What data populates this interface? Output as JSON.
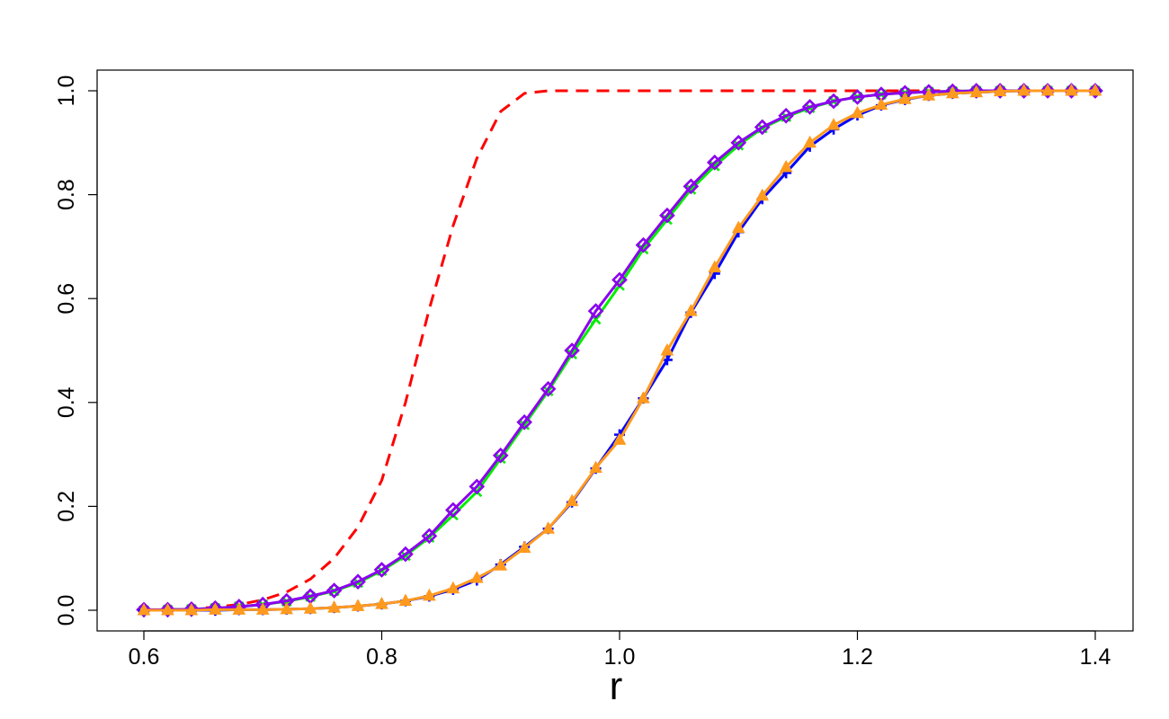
{
  "chart_data": {
    "type": "line",
    "title": "",
    "xlabel": "r",
    "ylabel": "",
    "xlim": [
      0.6,
      1.4
    ],
    "ylim": [
      0.0,
      1.0
    ],
    "x_ticks": [
      "0.6",
      "0.8",
      "1.0",
      "1.2",
      "1.4"
    ],
    "y_ticks": [
      "0.0",
      "0.2",
      "0.4",
      "0.6",
      "0.8",
      "1.0"
    ],
    "grid": false,
    "legend": "none",
    "series": [
      {
        "color": "#ff0000",
        "line_style": "dashed",
        "marker": "none",
        "x": [
          0.6,
          0.62,
          0.64,
          0.66,
          0.68,
          0.7,
          0.72,
          0.74,
          0.76,
          0.78,
          0.8,
          0.82,
          0.84,
          0.86,
          0.88,
          0.9,
          0.92,
          0.94,
          0.96,
          1.0,
          1.1,
          1.2,
          1.3,
          1.4
        ],
        "y": [
          0.0,
          0.001,
          0.003,
          0.006,
          0.011,
          0.02,
          0.035,
          0.06,
          0.1,
          0.16,
          0.25,
          0.4,
          0.58,
          0.74,
          0.87,
          0.96,
          0.995,
          1.0,
          1.0,
          1.0,
          1.0,
          1.0,
          1.0,
          1.0
        ]
      },
      {
        "color": "#00ee00",
        "line_style": "solid",
        "marker": "x",
        "x": [
          0.6,
          0.62,
          0.64,
          0.66,
          0.68,
          0.7,
          0.72,
          0.74,
          0.76,
          0.78,
          0.8,
          0.82,
          0.84,
          0.86,
          0.88,
          0.9,
          0.92,
          0.94,
          0.96,
          0.98,
          1.0,
          1.02,
          1.04,
          1.06,
          1.08,
          1.1,
          1.12,
          1.14,
          1.16,
          1.18,
          1.2,
          1.22,
          1.24,
          1.26,
          1.28,
          1.3,
          1.32,
          1.34,
          1.36,
          1.38,
          1.4
        ],
        "y": [
          0.0,
          0.001,
          0.002,
          0.004,
          0.007,
          0.011,
          0.017,
          0.026,
          0.037,
          0.053,
          0.076,
          0.105,
          0.14,
          0.183,
          0.228,
          0.292,
          0.357,
          0.422,
          0.493,
          0.56,
          0.625,
          0.695,
          0.752,
          0.81,
          0.855,
          0.895,
          0.928,
          0.95,
          0.967,
          0.98,
          0.988,
          0.993,
          0.996,
          0.998,
          0.999,
          1.0,
          1.0,
          1.0,
          1.0,
          1.0,
          1.0
        ]
      },
      {
        "color": "#8b00ee",
        "line_style": "solid",
        "marker": "diamond",
        "x": [
          0.6,
          0.62,
          0.64,
          0.66,
          0.68,
          0.7,
          0.72,
          0.74,
          0.76,
          0.78,
          0.8,
          0.82,
          0.84,
          0.86,
          0.88,
          0.9,
          0.92,
          0.94,
          0.96,
          0.98,
          1.0,
          1.02,
          1.04,
          1.06,
          1.08,
          1.1,
          1.12,
          1.14,
          1.16,
          1.18,
          1.2,
          1.22,
          1.24,
          1.26,
          1.28,
          1.3,
          1.32,
          1.34,
          1.36,
          1.38,
          1.4
        ],
        "y": [
          0.001,
          0.001,
          0.002,
          0.004,
          0.007,
          0.011,
          0.018,
          0.027,
          0.038,
          0.055,
          0.078,
          0.108,
          0.143,
          0.193,
          0.238,
          0.298,
          0.362,
          0.426,
          0.5,
          0.576,
          0.636,
          0.703,
          0.76,
          0.816,
          0.862,
          0.9,
          0.93,
          0.952,
          0.969,
          0.98,
          0.988,
          0.993,
          0.996,
          0.998,
          0.999,
          1.0,
          1.0,
          1.0,
          1.0,
          1.0,
          1.0
        ]
      },
      {
        "color": "#0000ff",
        "line_style": "solid",
        "marker": "plus",
        "x": [
          0.6,
          0.62,
          0.64,
          0.66,
          0.68,
          0.7,
          0.72,
          0.74,
          0.76,
          0.78,
          0.8,
          0.82,
          0.84,
          0.86,
          0.88,
          0.9,
          0.92,
          0.94,
          0.96,
          0.98,
          1.0,
          1.02,
          1.04,
          1.06,
          1.08,
          1.1,
          1.12,
          1.14,
          1.16,
          1.18,
          1.2,
          1.22,
          1.24,
          1.26,
          1.28,
          1.3,
          1.32,
          1.34,
          1.36,
          1.38,
          1.4
        ],
        "y": [
          0.0,
          0.0,
          0.0,
          0.0,
          0.001,
          0.001,
          0.002,
          0.003,
          0.005,
          0.008,
          0.012,
          0.018,
          0.027,
          0.04,
          0.058,
          0.088,
          0.122,
          0.157,
          0.208,
          0.273,
          0.338,
          0.408,
          0.482,
          0.573,
          0.648,
          0.728,
          0.792,
          0.842,
          0.893,
          0.926,
          0.953,
          0.972,
          0.983,
          0.991,
          0.995,
          0.997,
          0.999,
          1.0,
          1.0,
          1.0,
          1.0
        ]
      },
      {
        "color": "#ff9a1e",
        "line_style": "solid",
        "marker": "triangle",
        "x": [
          0.6,
          0.62,
          0.64,
          0.66,
          0.68,
          0.7,
          0.72,
          0.74,
          0.76,
          0.78,
          0.8,
          0.82,
          0.84,
          0.86,
          0.88,
          0.9,
          0.92,
          0.94,
          0.96,
          0.98,
          1.0,
          1.02,
          1.04,
          1.06,
          1.08,
          1.1,
          1.12,
          1.14,
          1.16,
          1.18,
          1.2,
          1.22,
          1.24,
          1.26,
          1.28,
          1.3,
          1.32,
          1.34,
          1.36,
          1.38,
          1.4
        ],
        "y": [
          0.0,
          0.0,
          0.0,
          0.001,
          0.001,
          0.001,
          0.002,
          0.003,
          0.005,
          0.008,
          0.012,
          0.018,
          0.028,
          0.042,
          0.062,
          0.086,
          0.12,
          0.157,
          0.21,
          0.274,
          0.328,
          0.408,
          0.5,
          0.576,
          0.66,
          0.736,
          0.798,
          0.853,
          0.9,
          0.934,
          0.957,
          0.973,
          0.984,
          0.991,
          0.995,
          0.997,
          0.999,
          1.0,
          1.0,
          1.0,
          1.0
        ]
      }
    ]
  }
}
